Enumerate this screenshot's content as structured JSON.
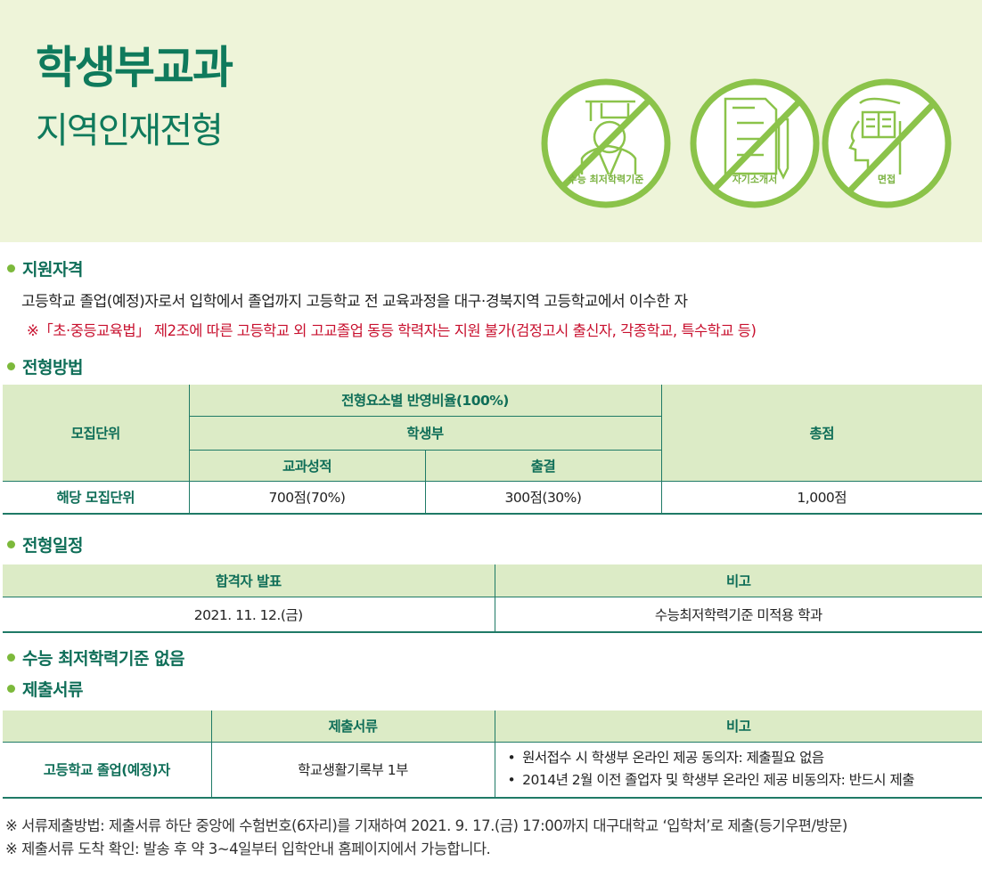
{
  "header": {
    "title": "학생부교과",
    "subtitle": "지역인재전형",
    "icons": [
      {
        "name": "graduate-icon",
        "label": "수능 최저학력기준"
      },
      {
        "name": "document-pencil-icon",
        "label": "자기소개서"
      },
      {
        "name": "head-book-icon",
        "label": "면접"
      }
    ],
    "accent": "#8bc34a"
  },
  "qualification": {
    "heading": "지원자격",
    "text": "고등학교 졸업(예정)자로서 입학에서 졸업까지 고등학교 전 교육과정을 대구·경북지역 고등학교에서 이수한 자",
    "note": "※「초·중등교육법」 제2조에 따른 고등학교 외 고교졸업 동등 학력자는 지원 불가(검정고시 출신자, 각종학교, 특수학교 등)"
  },
  "method": {
    "heading": "전형방법",
    "headers": {
      "unit": "모집단위",
      "ratio": "전형요소별 반영비율(100%)",
      "record": "학생부",
      "grades": "교과성적",
      "attendance": "출결",
      "total": "총점"
    },
    "row": {
      "unit": "해당 모집단위",
      "grades": "700점(70%)",
      "attendance": "300점(30%)",
      "total": "1,000점"
    }
  },
  "schedule": {
    "heading": "전형일정",
    "headers": [
      "합격자 발표",
      "비고"
    ],
    "row": [
      "2021. 11. 12.(금)",
      "수능최저학력기준 미적용 학과"
    ]
  },
  "csat": {
    "heading": "수능 최저학력기준 없음"
  },
  "documents": {
    "heading": "제출서류",
    "headers": [
      "",
      "제출서류",
      "비고"
    ],
    "row": {
      "target": "고등학교 졸업(예정)자",
      "doc": "학교생활기록부 1부",
      "remarks": [
        "원서접수 시 학생부 온라인 제공 동의자: 제출필요 없음",
        "2014년 2월 이전 졸업자 및 학생부 온라인 제공 비동의자: 반드시 제출"
      ]
    }
  },
  "notes": [
    "※ 서류제출방법: 제출서류 하단 중앙에 수험번호(6자리)를 기재하여 2021. 9. 17.(금) 17:00까지 대구대학교 ‘입학처’로 제출(등기우편/방문)",
    "※ 제출서류 도착 확인: 발송 후 약 3~4일부터 입학안내 홈페이지에서 가능합니다."
  ]
}
